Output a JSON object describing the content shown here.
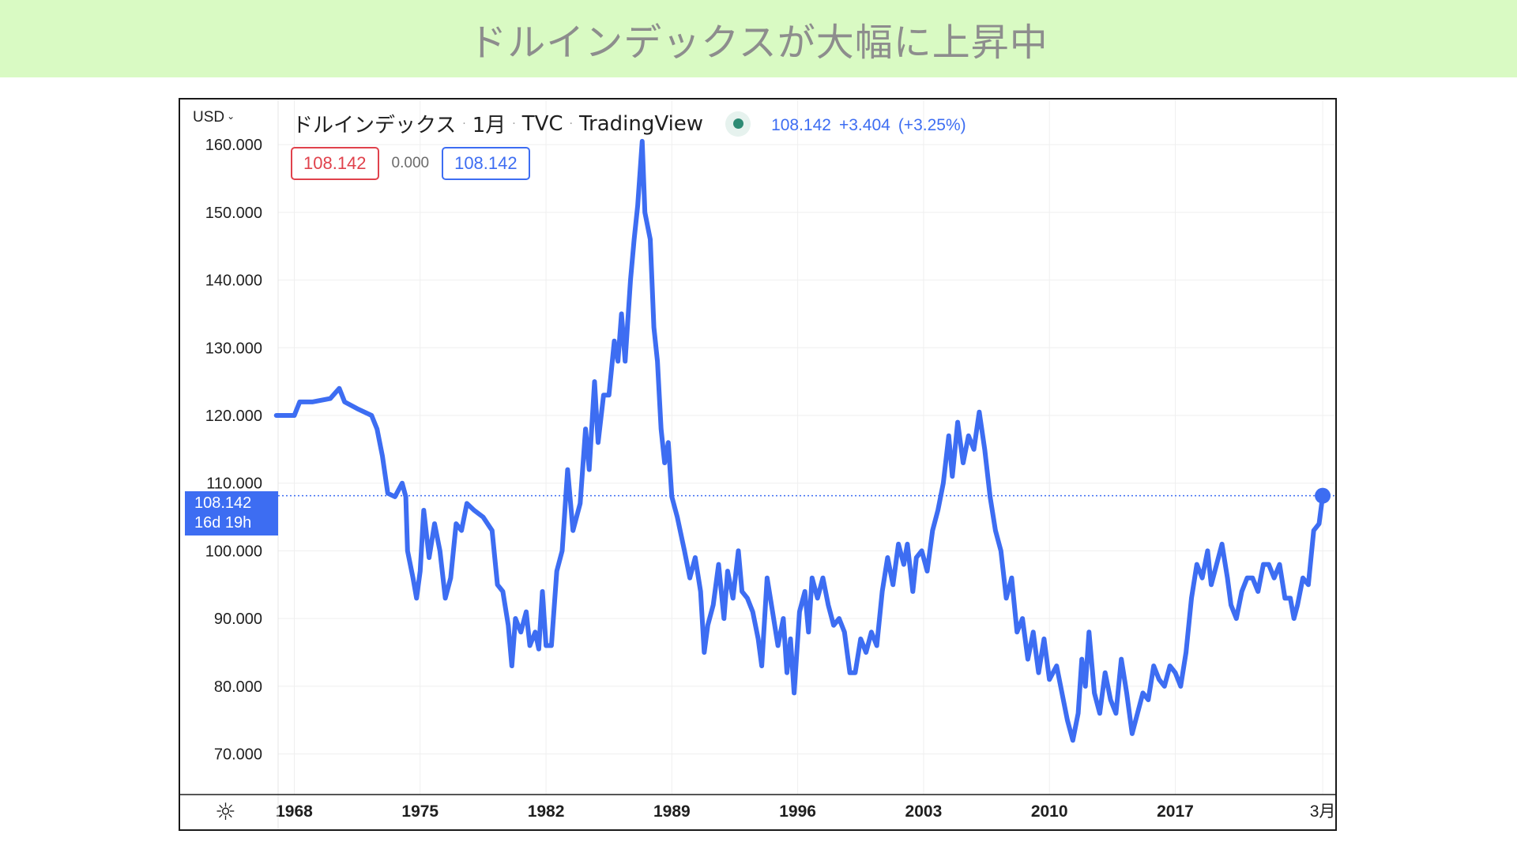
{
  "banner": {
    "title": "ドルインデックスが大幅に上昇中"
  },
  "legend": {
    "currency": "USD",
    "symbol_name": "ドルインデックス",
    "interval": "1月",
    "exchange": "TVC",
    "source": "TradingView",
    "last_value": "108.142",
    "change": "+3.404",
    "change_percent": "(+3.25%)"
  },
  "ohlc": {
    "left_box": "108.142",
    "middle": "0.000",
    "right_box": "108.142"
  },
  "price_tag": {
    "price": "108.142",
    "countdown": "16d 19h"
  },
  "colors": {
    "banner_bg": "#d9fac3",
    "line": "#3d6df2",
    "red_box": "#e0424c",
    "status_dot": "#2e8b74"
  },
  "chart_data": {
    "type": "line",
    "title": "ドルインデックス · 1月 · TVC · TradingView",
    "xlabel": "",
    "ylabel": "",
    "ylim": [
      64,
      162
    ],
    "xlim": [
      1967.1,
      2025.9
    ],
    "y_ticks": [
      "160.000",
      "150.000",
      "140.000",
      "130.000",
      "120.000",
      "110.000",
      "100.000",
      "90.000",
      "80.000",
      "70.000"
    ],
    "y_tick_values": [
      160,
      150,
      140,
      130,
      120,
      110,
      100,
      90,
      80,
      70
    ],
    "x_ticks": [
      "1968",
      "1975",
      "1982",
      "1989",
      "1996",
      "2003",
      "2010",
      "2017",
      "3月"
    ],
    "x_tick_values": [
      1968,
      1975,
      1982,
      1989,
      1996,
      2003,
      2010,
      2017,
      2025.2
    ],
    "last_price_line": 108.142,
    "grid": true,
    "series": [
      {
        "values": [
          [
            1967.0,
            120.0
          ],
          [
            1968.0,
            120.0
          ],
          [
            1968.3,
            122.0
          ],
          [
            1969.0,
            122.0
          ],
          [
            1970.0,
            122.5
          ],
          [
            1970.5,
            124.0
          ],
          [
            1970.8,
            122.0
          ],
          [
            1971.5,
            121.0
          ],
          [
            1972.3,
            120.0
          ],
          [
            1972.6,
            118.0
          ],
          [
            1972.9,
            114.0
          ],
          [
            1973.2,
            108.5
          ],
          [
            1973.6,
            108.0
          ],
          [
            1974.0,
            110.0
          ],
          [
            1974.2,
            108.0
          ],
          [
            1974.3,
            100.0
          ],
          [
            1974.6,
            96.0
          ],
          [
            1974.8,
            93.0
          ],
          [
            1975.0,
            97.0
          ],
          [
            1975.2,
            106.0
          ],
          [
            1975.5,
            99.0
          ],
          [
            1975.8,
            104.0
          ],
          [
            1976.1,
            100.0
          ],
          [
            1976.4,
            93.0
          ],
          [
            1976.7,
            96.0
          ],
          [
            1977.0,
            104.0
          ],
          [
            1977.3,
            103.0
          ],
          [
            1977.6,
            107.0
          ],
          [
            1978.0,
            106.0
          ],
          [
            1978.5,
            105.0
          ],
          [
            1979.0,
            103.0
          ],
          [
            1979.3,
            95.0
          ],
          [
            1979.6,
            94.0
          ],
          [
            1979.9,
            89.0
          ],
          [
            1980.1,
            83.0
          ],
          [
            1980.3,
            90.0
          ],
          [
            1980.6,
            88.0
          ],
          [
            1980.9,
            91.0
          ],
          [
            1981.1,
            86.0
          ],
          [
            1981.4,
            88.0
          ],
          [
            1981.6,
            85.5
          ],
          [
            1981.8,
            94.0
          ],
          [
            1982.0,
            86.0
          ],
          [
            1982.3,
            86.0
          ],
          [
            1982.6,
            97.0
          ],
          [
            1982.9,
            100.0
          ],
          [
            1983.2,
            112.0
          ],
          [
            1983.5,
            103.0
          ],
          [
            1983.9,
            107.0
          ],
          [
            1984.2,
            118.0
          ],
          [
            1984.4,
            112.0
          ],
          [
            1984.7,
            125.0
          ],
          [
            1984.9,
            116.0
          ],
          [
            1985.2,
            123.0
          ],
          [
            1985.5,
            123.0
          ],
          [
            1985.8,
            131.0
          ],
          [
            1986.0,
            128.0
          ],
          [
            1986.2,
            135.0
          ],
          [
            1986.4,
            128.0
          ],
          [
            1986.7,
            140.0
          ],
          [
            1986.9,
            146.0
          ],
          [
            1987.1,
            151.0
          ],
          [
            1987.35,
            160.5
          ],
          [
            1987.5,
            150.0
          ],
          [
            1987.8,
            146.0
          ],
          [
            1988.0,
            133.0
          ],
          [
            1988.2,
            128.0
          ],
          [
            1988.4,
            118.0
          ],
          [
            1988.6,
            113.0
          ],
          [
            1988.8,
            116.0
          ],
          [
            1989.0,
            108.0
          ],
          [
            1989.3,
            105.0
          ],
          [
            1989.7,
            100.0
          ],
          [
            1990.0,
            96.0
          ],
          [
            1990.3,
            99.0
          ],
          [
            1990.6,
            94.0
          ],
          [
            1990.8,
            85.0
          ],
          [
            1991.0,
            89.0
          ],
          [
            1991.3,
            92.0
          ],
          [
            1991.6,
            98.0
          ],
          [
            1991.9,
            90.0
          ],
          [
            1992.1,
            97.0
          ],
          [
            1992.4,
            93.0
          ],
          [
            1992.7,
            100.0
          ],
          [
            1992.9,
            94.0
          ],
          [
            1993.2,
            93.0
          ],
          [
            1993.5,
            91.0
          ],
          [
            1993.8,
            87.0
          ],
          [
            1994.0,
            83.0
          ],
          [
            1994.3,
            96.0
          ],
          [
            1994.6,
            91.0
          ],
          [
            1994.9,
            86.0
          ],
          [
            1995.2,
            90.0
          ],
          [
            1995.4,
            82.0
          ],
          [
            1995.6,
            87.0
          ],
          [
            1995.8,
            79.0
          ],
          [
            1996.1,
            91.0
          ],
          [
            1996.4,
            94.0
          ],
          [
            1996.6,
            88.0
          ],
          [
            1996.8,
            96.0
          ],
          [
            1997.1,
            93.0
          ],
          [
            1997.4,
            96.0
          ],
          [
            1997.7,
            92.0
          ],
          [
            1998.0,
            89.0
          ],
          [
            1998.3,
            90.0
          ],
          [
            1998.6,
            88.0
          ],
          [
            1998.9,
            82.0
          ],
          [
            1999.2,
            82.0
          ],
          [
            1999.5,
            87.0
          ],
          [
            1999.8,
            85.0
          ],
          [
            2000.1,
            88.0
          ],
          [
            2000.4,
            86.0
          ],
          [
            2000.7,
            94.0
          ],
          [
            2001.0,
            99.0
          ],
          [
            2001.3,
            95.0
          ],
          [
            2001.6,
            101.0
          ],
          [
            2001.9,
            98.0
          ],
          [
            2002.1,
            101.0
          ],
          [
            2002.4,
            94.0
          ],
          [
            2002.6,
            99.0
          ],
          [
            2002.9,
            100.0
          ],
          [
            2003.2,
            97.0
          ],
          [
            2003.5,
            103.0
          ],
          [
            2003.8,
            106.0
          ],
          [
            2004.1,
            110.0
          ],
          [
            2004.4,
            117.0
          ],
          [
            2004.6,
            111.0
          ],
          [
            2004.9,
            119.0
          ],
          [
            2005.2,
            113.0
          ],
          [
            2005.5,
            117.0
          ],
          [
            2005.8,
            115.0
          ],
          [
            2006.1,
            120.5
          ],
          [
            2006.4,
            115.0
          ],
          [
            2006.7,
            108.0
          ],
          [
            2007.0,
            103.0
          ],
          [
            2007.3,
            100.0
          ],
          [
            2007.6,
            93.0
          ],
          [
            2007.9,
            96.0
          ],
          [
            2008.2,
            88.0
          ],
          [
            2008.5,
            90.0
          ],
          [
            2008.8,
            84.0
          ],
          [
            2009.1,
            88.0
          ],
          [
            2009.4,
            82.0
          ],
          [
            2009.7,
            87.0
          ],
          [
            2010.0,
            81.0
          ],
          [
            2010.4,
            83.0
          ],
          [
            2010.7,
            79.0
          ],
          [
            2011.0,
            75.0
          ],
          [
            2011.3,
            72.0
          ],
          [
            2011.6,
            76.0
          ],
          [
            2011.8,
            84.0
          ],
          [
            2012.0,
            80.0
          ],
          [
            2012.2,
            88.0
          ],
          [
            2012.5,
            79.0
          ],
          [
            2012.8,
            76.0
          ],
          [
            2013.1,
            82.0
          ],
          [
            2013.4,
            78.0
          ],
          [
            2013.7,
            76.0
          ],
          [
            2014.0,
            84.0
          ],
          [
            2014.3,
            79.0
          ],
          [
            2014.6,
            73.0
          ],
          [
            2014.9,
            76.0
          ],
          [
            2015.2,
            79.0
          ],
          [
            2015.5,
            78.0
          ],
          [
            2015.8,
            83.0
          ],
          [
            2016.1,
            81.0
          ],
          [
            2016.4,
            80.0
          ],
          [
            2016.7,
            83.0
          ],
          [
            2017.0,
            82.0
          ],
          [
            2017.3,
            80.0
          ],
          [
            2017.6,
            85.0
          ],
          [
            2017.9,
            93.0
          ],
          [
            2018.2,
            98.0
          ],
          [
            2018.5,
            96.0
          ],
          [
            2018.8,
            100.0
          ],
          [
            2019.0,
            95.0
          ],
          [
            2019.3,
            98.0
          ],
          [
            2019.6,
            101.0
          ],
          [
            2019.9,
            96.0
          ],
          [
            2020.1,
            92.0
          ],
          [
            2020.4,
            90.0
          ],
          [
            2020.7,
            94.0
          ],
          [
            2021.0,
            96.0
          ],
          [
            2021.3,
            96.0
          ],
          [
            2021.6,
            94.0
          ],
          [
            2021.9,
            98.0
          ],
          [
            2022.2,
            98.0
          ],
          [
            2022.5,
            96.0
          ],
          [
            2022.8,
            98.0
          ],
          [
            2023.1,
            93.0
          ],
          [
            2023.4,
            93.0
          ],
          [
            2023.6,
            90.0
          ],
          [
            2023.8,
            92.0
          ],
          [
            2024.1,
            96.0
          ],
          [
            2024.4,
            95.0
          ],
          [
            2024.7,
            103.0
          ],
          [
            2025.0,
            104.0
          ],
          [
            2025.2,
            108.142
          ]
        ]
      }
    ]
  }
}
